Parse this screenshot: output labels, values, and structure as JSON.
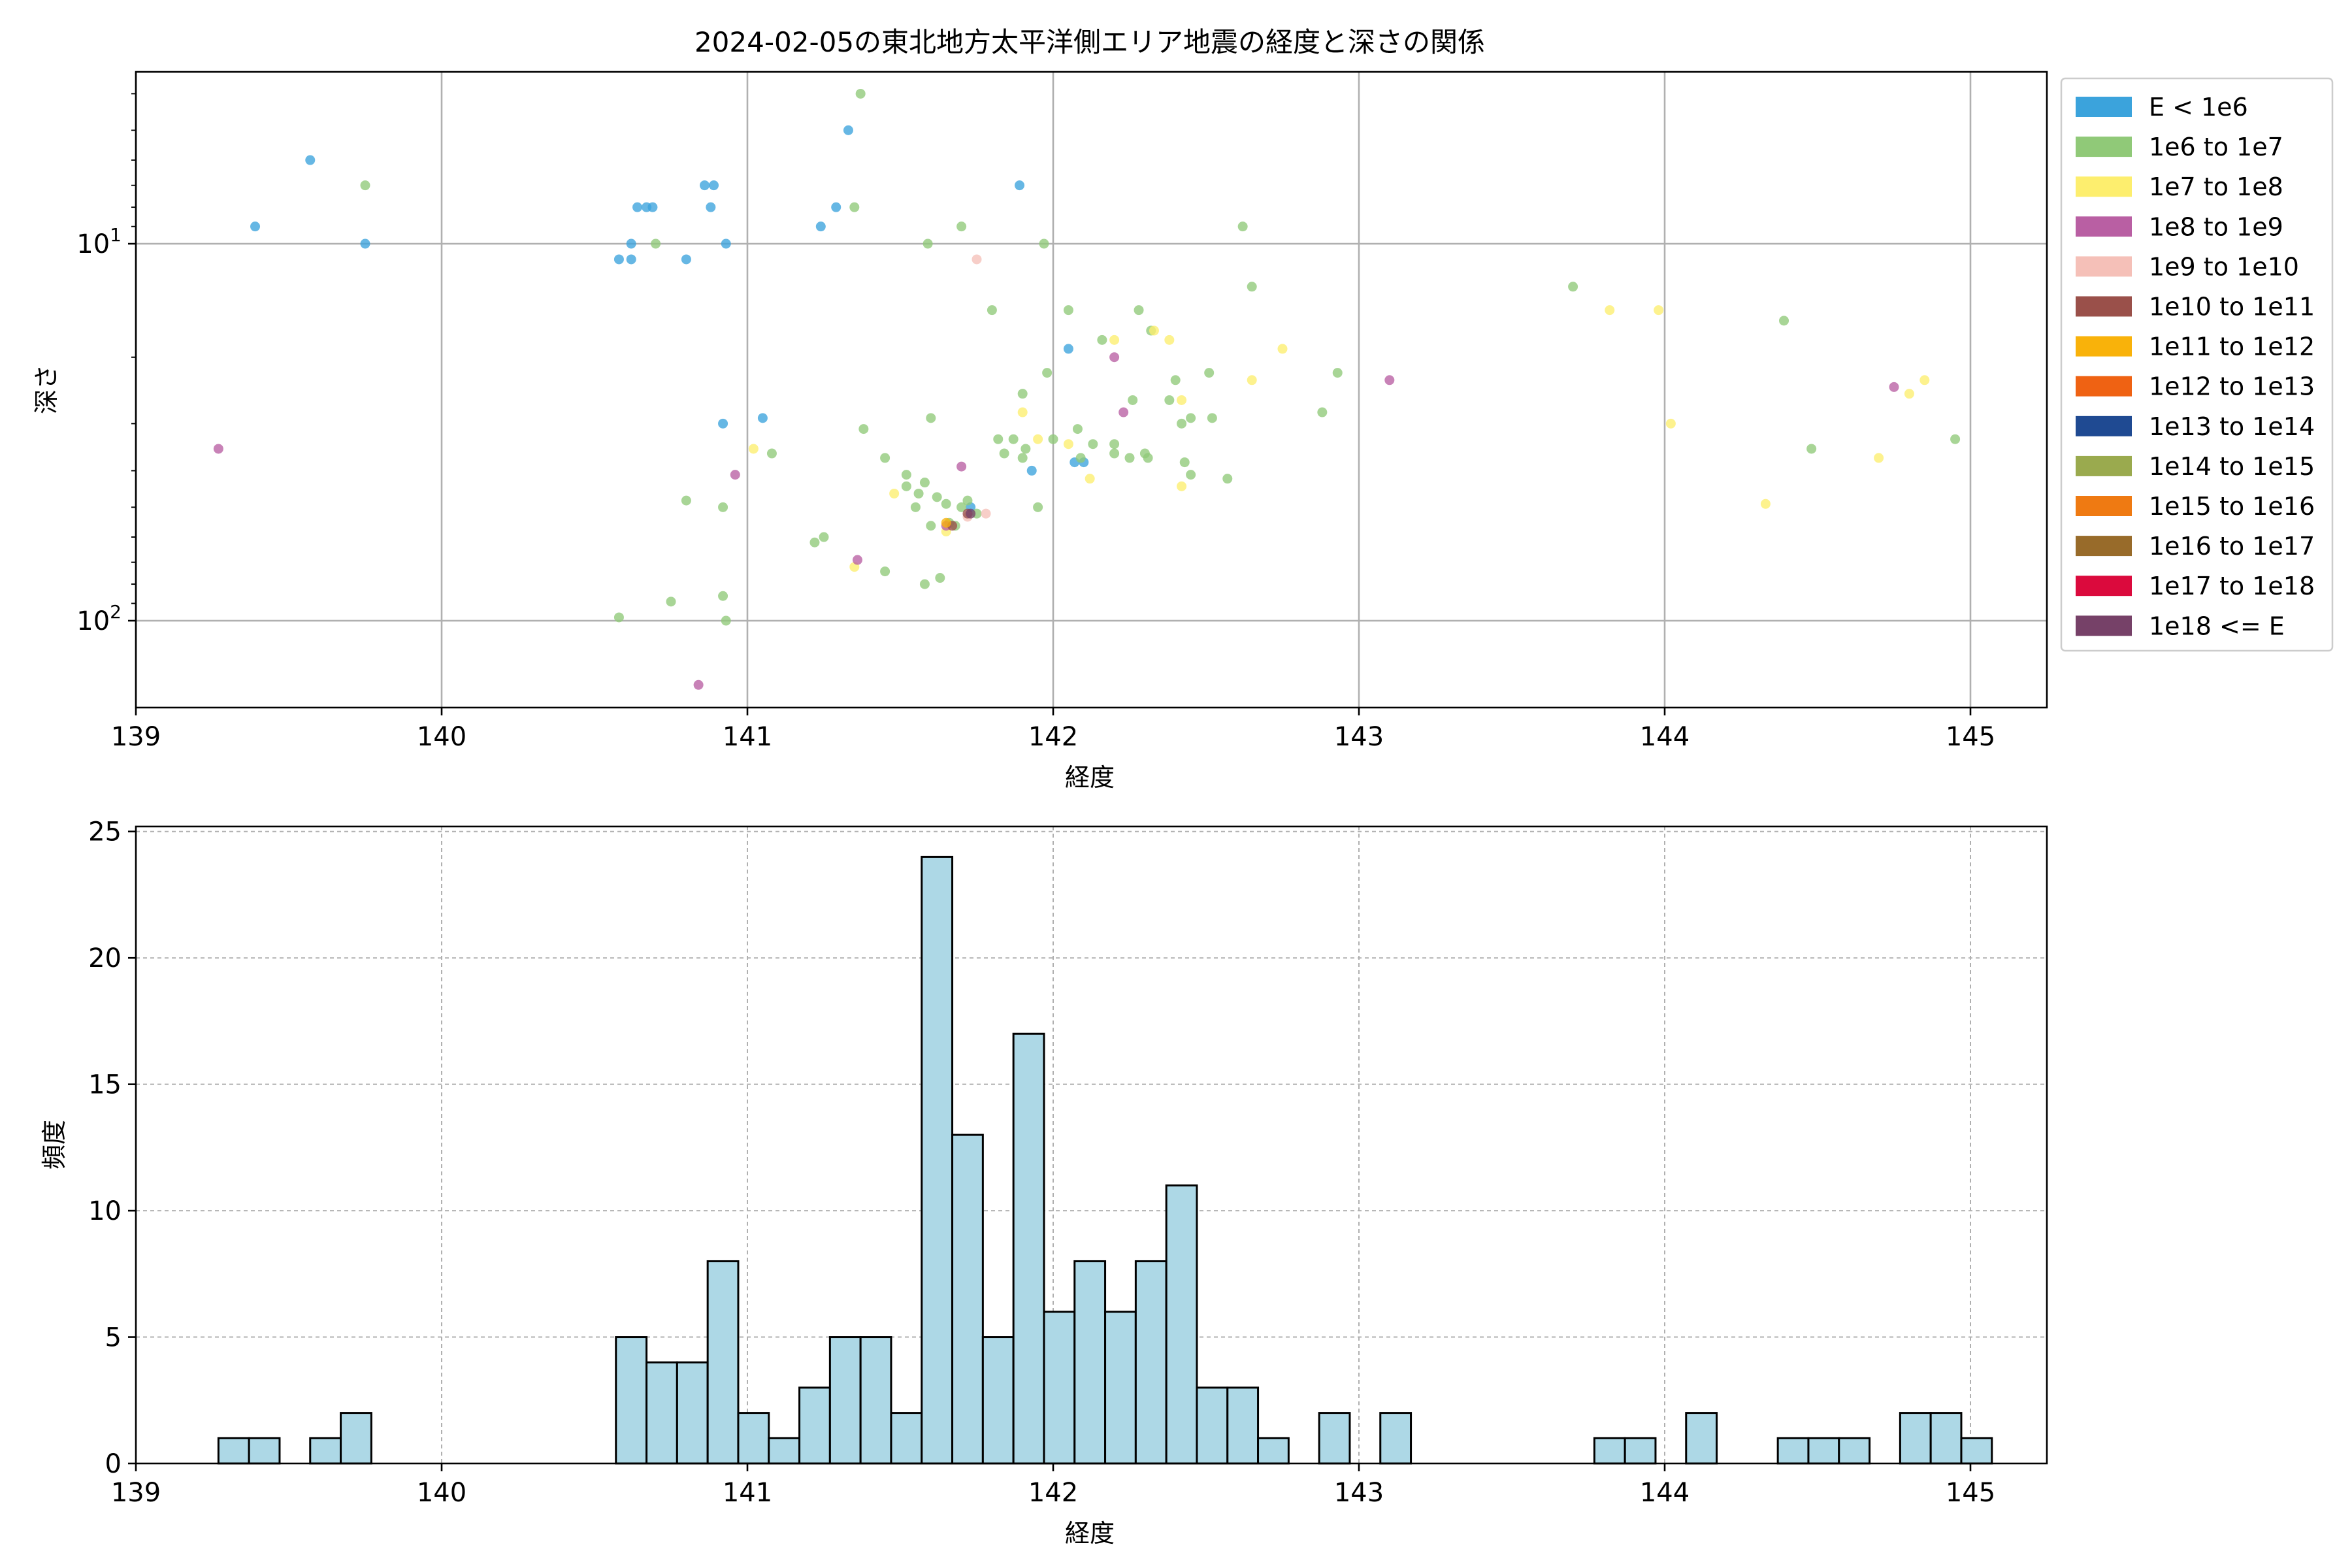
{
  "chart_data": [
    {
      "type": "scatter",
      "title": "2024-02-05の東北地方太平洋側エリア地震の経度と深さの関係",
      "xlabel": "経度",
      "ylabel": "深さ",
      "xlim": [
        139.0,
        145.25
      ],
      "ylim": [
        3.5,
        170
      ],
      "yscale": "log",
      "y_inverted": true,
      "x_ticks": [
        139,
        140,
        141,
        142,
        143,
        144,
        145
      ],
      "y_ticks": [
        {
          "value": 10,
          "base": "10",
          "exp": "1"
        },
        {
          "value": 100,
          "base": "10",
          "exp": "2"
        }
      ],
      "grid": true,
      "legend_position": "outside-right",
      "legend": [
        {
          "label": "E < 1e6",
          "color": "#3ba3dc"
        },
        {
          "label": "1e6 to 1e7",
          "color": "#90c978"
        },
        {
          "label": "1e7 to 1e8",
          "color": "#fdee6e"
        },
        {
          "label": "1e8 to 1e9",
          "color": "#b95fa3"
        },
        {
          "label": "1e9 to 1e10",
          "color": "#f5c0b8"
        },
        {
          "label": "1e10 to 1e11",
          "color": "#9a504a"
        },
        {
          "label": "1e11 to 1e12",
          "color": "#f9b20a"
        },
        {
          "label": "1e12 to 1e13",
          "color": "#ef6213"
        },
        {
          "label": "1e13 to 1e14",
          "color": "#1f4a92"
        },
        {
          "label": "1e14 to 1e15",
          "color": "#9aaa4e"
        },
        {
          "label": "1e15 to 1e16",
          "color": "#ef7a12"
        },
        {
          "label": "1e16 to 1e17",
          "color": "#986b2a"
        },
        {
          "label": "1e17 to 1e18",
          "color": "#db0a3d"
        },
        {
          "label": "1e18 <= E",
          "color": "#764168"
        }
      ],
      "series": [
        {
          "name": "E < 1e6",
          "color": "#3ba3dc",
          "points": [
            [
              139.39,
              9
            ],
            [
              139.57,
              6
            ],
            [
              139.75,
              10
            ],
            [
              140.58,
              11
            ],
            [
              140.62,
              11
            ],
            [
              140.62,
              10
            ],
            [
              140.64,
              8
            ],
            [
              140.67,
              8
            ],
            [
              140.69,
              8
            ],
            [
              140.8,
              11
            ],
            [
              140.86,
              7
            ],
            [
              140.88,
              8
            ],
            [
              140.89,
              7
            ],
            [
              140.93,
              10
            ],
            [
              140.92,
              30
            ],
            [
              141.05,
              29
            ],
            [
              141.24,
              9
            ],
            [
              141.29,
              8
            ],
            [
              141.33,
              5
            ],
            [
              141.89,
              7
            ],
            [
              142.05,
              19
            ],
            [
              142.07,
              38
            ],
            [
              142.1,
              38
            ],
            [
              141.73,
              50
            ],
            [
              141.93,
              40
            ]
          ]
        },
        {
          "name": "1e6 to 1e7",
          "color": "#90c978",
          "points": [
            [
              139.75,
              7
            ],
            [
              141.37,
              4
            ],
            [
              141.35,
              8
            ],
            [
              140.7,
              10
            ],
            [
              141.59,
              10
            ],
            [
              141.7,
              9
            ],
            [
              141.97,
              10
            ],
            [
              142.62,
              9
            ],
            [
              142.65,
              13
            ],
            [
              142.32,
              17
            ],
            [
              142.4,
              23
            ],
            [
              142.45,
              29
            ],
            [
              142.52,
              29
            ],
            [
              142.57,
              42
            ],
            [
              142.93,
              22
            ],
            [
              142.88,
              28
            ],
            [
              143.7,
              13
            ],
            [
              144.39,
              16
            ],
            [
              144.48,
              35
            ],
            [
              144.95,
              33
            ],
            [
              141.8,
              15
            ],
            [
              142.05,
              15
            ],
            [
              142.28,
              15
            ],
            [
              142.16,
              18
            ],
            [
              141.98,
              22
            ],
            [
              141.9,
              25
            ],
            [
              142.08,
              31
            ],
            [
              142.13,
              34
            ],
            [
              142.2,
              36
            ],
            [
              142.31,
              37
            ],
            [
              141.38,
              31
            ],
            [
              141.45,
              37
            ],
            [
              141.52,
              41
            ],
            [
              141.56,
              46
            ],
            [
              141.6,
              29
            ],
            [
              141.58,
              43
            ],
            [
              141.62,
              47
            ],
            [
              141.65,
              49
            ],
            [
              141.7,
              50
            ],
            [
              141.75,
              52
            ],
            [
              141.82,
              33
            ],
            [
              141.9,
              37
            ],
            [
              141.95,
              50
            ],
            [
              141.87,
              33
            ],
            [
              142.0,
              33
            ],
            [
              142.2,
              34
            ],
            [
              142.26,
              26
            ],
            [
              142.38,
              26
            ],
            [
              142.42,
              30
            ],
            [
              142.45,
              41
            ],
            [
              142.3,
              36
            ],
            [
              142.25,
              37
            ],
            [
              140.8,
              48
            ],
            [
              140.92,
              50
            ],
            [
              141.08,
              36
            ],
            [
              141.22,
              62
            ],
            [
              141.25,
              60
            ],
            [
              141.45,
              74
            ],
            [
              141.58,
              80
            ],
            [
              141.63,
              77
            ],
            [
              140.58,
              98
            ],
            [
              140.75,
              89
            ],
            [
              140.92,
              86
            ],
            [
              140.93,
              100
            ],
            [
              141.68,
              56
            ],
            [
              141.6,
              56
            ],
            [
              141.55,
              50
            ],
            [
              141.72,
              48
            ],
            [
              141.66,
              55
            ],
            [
              141.52,
              44
            ],
            [
              141.84,
              36
            ],
            [
              141.91,
              35
            ],
            [
              142.09,
              37
            ],
            [
              142.43,
              38
            ],
            [
              142.51,
              22
            ]
          ]
        },
        {
          "name": "1e7 to 1e8",
          "color": "#fdee6e",
          "points": [
            [
              143.82,
              15
            ],
            [
              143.98,
              15
            ],
            [
              144.02,
              30
            ],
            [
              144.33,
              49
            ],
            [
              144.7,
              37
            ],
            [
              144.8,
              25
            ],
            [
              144.85,
              23
            ],
            [
              142.2,
              18
            ],
            [
              142.33,
              17
            ],
            [
              142.38,
              18
            ],
            [
              142.42,
              26
            ],
            [
              142.42,
              44
            ],
            [
              142.65,
              23
            ],
            [
              142.75,
              19
            ],
            [
              141.9,
              28
            ],
            [
              141.02,
              35
            ],
            [
              141.48,
              46
            ],
            [
              141.65,
              58
            ],
            [
              141.35,
              72
            ],
            [
              142.12,
              42
            ],
            [
              141.95,
              33
            ],
            [
              142.05,
              34
            ]
          ]
        },
        {
          "name": "1e8 to 1e9",
          "color": "#b95fa3",
          "points": [
            [
              139.27,
              35
            ],
            [
              140.96,
              41
            ],
            [
              140.84,
              148
            ],
            [
              141.36,
              69
            ],
            [
              141.7,
              39
            ],
            [
              141.65,
              56
            ],
            [
              142.2,
              20
            ],
            [
              142.23,
              28
            ],
            [
              143.1,
              23
            ],
            [
              144.75,
              24
            ]
          ]
        },
        {
          "name": "1e9 to 1e10",
          "color": "#f5c0b8",
          "points": [
            [
              141.75,
              11
            ],
            [
              141.78,
              52
            ],
            [
              141.72,
              53
            ]
          ]
        },
        {
          "name": "1e10 to 1e11",
          "color": "#9a504a",
          "points": [
            [
              141.67,
              56
            ],
            [
              141.72,
              52
            ]
          ]
        },
        {
          "name": "1e11 to 1e12",
          "color": "#f9b20a",
          "points": [
            [
              141.65,
              55
            ]
          ]
        },
        {
          "name": "1e18 <= E",
          "color": "#764168",
          "points": [
            [
              141.73,
              52
            ]
          ]
        }
      ]
    },
    {
      "type": "bar",
      "title": "",
      "xlabel": "経度",
      "ylabel": "頻度",
      "xlim": [
        139.0,
        145.25
      ],
      "ylim": [
        0,
        25.2
      ],
      "x_ticks": [
        139,
        140,
        141,
        142,
        143,
        144,
        145
      ],
      "y_ticks": [
        0,
        5,
        10,
        15,
        20,
        25
      ],
      "grid": true,
      "bin_start": 139.27,
      "bin_width": 0.1,
      "values": [
        1,
        1,
        0,
        1,
        2,
        0,
        0,
        0,
        0,
        0,
        0,
        0,
        0,
        5,
        4,
        4,
        8,
        2,
        1,
        3,
        5,
        5,
        2,
        24,
        13,
        5,
        17,
        6,
        8,
        6,
        8,
        11,
        3,
        3,
        1,
        0,
        2,
        0,
        2,
        0,
        0,
        0,
        0,
        0,
        0,
        1,
        1,
        0,
        2,
        0,
        0,
        1,
        1,
        1,
        0,
        2,
        2,
        1
      ]
    }
  ]
}
